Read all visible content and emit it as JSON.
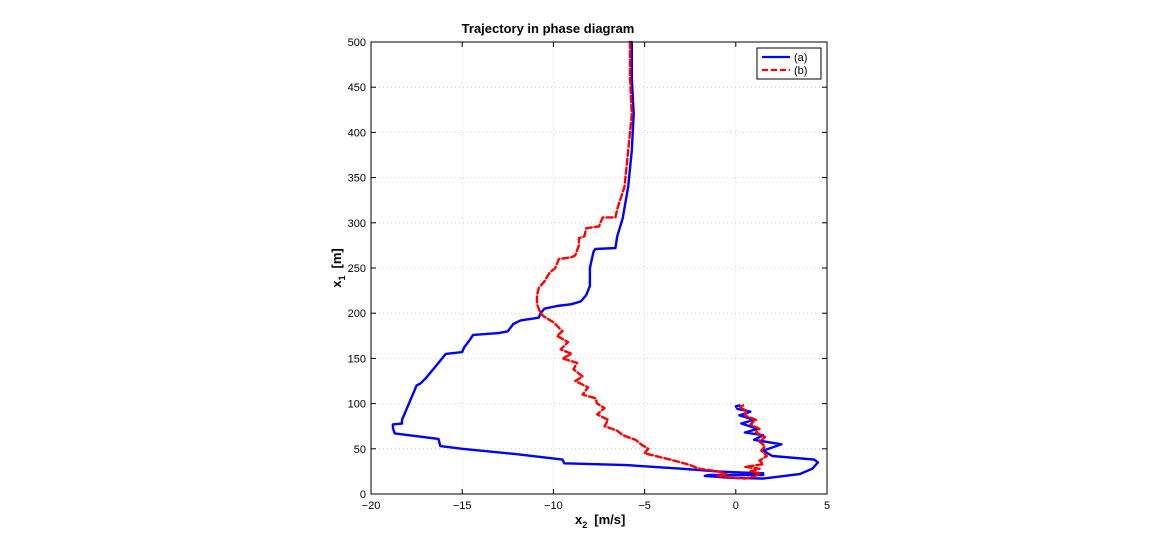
{
  "chart_data": {
    "type": "line",
    "title": "Trajectory in phase diagram",
    "xlabel": {
      "main": "x",
      "sub": "2",
      "unit": "[m/s]"
    },
    "ylabel": {
      "main": "x",
      "sub": "1",
      "unit": "[m]"
    },
    "xlim": [
      -20,
      5
    ],
    "ylim": [
      0,
      500
    ],
    "xticks": [
      -20,
      -15,
      -10,
      -5,
      0,
      5
    ],
    "yticks": [
      0,
      50,
      100,
      150,
      200,
      250,
      300,
      350,
      400,
      450,
      500
    ],
    "xtick_labels": [
      "−20",
      "−15",
      "−10",
      "−5",
      "0",
      "5"
    ],
    "ytick_labels": [
      "0",
      "50",
      "100",
      "150",
      "200",
      "250",
      "300",
      "350",
      "400",
      "450",
      "500"
    ],
    "grid": true,
    "legend_position": "top-right",
    "series": [
      {
        "name": "(a)",
        "color": "#0000ff",
        "style": "solid",
        "points": [
          [
            -5.7,
            500
          ],
          [
            -5.7,
            460
          ],
          [
            -5.6,
            420
          ],
          [
            -5.7,
            380
          ],
          [
            -5.9,
            340
          ],
          [
            -6.2,
            305
          ],
          [
            -6.5,
            285
          ],
          [
            -6.6,
            272
          ],
          [
            -7.7,
            271
          ],
          [
            -7.8,
            268
          ],
          [
            -8.0,
            250
          ],
          [
            -8.0,
            230
          ],
          [
            -8.2,
            220
          ],
          [
            -8.5,
            213
          ],
          [
            -9.0,
            210
          ],
          [
            -9.8,
            208
          ],
          [
            -10.5,
            205
          ],
          [
            -10.7,
            200
          ],
          [
            -10.8,
            195
          ],
          [
            -11.8,
            192
          ],
          [
            -12.2,
            188
          ],
          [
            -12.5,
            180
          ],
          [
            -13.0,
            178
          ],
          [
            -14.4,
            176
          ],
          [
            -14.6,
            170
          ],
          [
            -14.9,
            162
          ],
          [
            -15.0,
            157
          ],
          [
            -15.9,
            155
          ],
          [
            -16.1,
            150
          ],
          [
            -16.5,
            140
          ],
          [
            -17.0,
            128
          ],
          [
            -17.3,
            122
          ],
          [
            -17.5,
            120
          ],
          [
            -18.3,
            82
          ],
          [
            -18.3,
            78
          ],
          [
            -18.8,
            77
          ],
          [
            -18.8,
            73
          ],
          [
            -18.7,
            67
          ],
          [
            -16.3,
            61
          ],
          [
            -16.2,
            53
          ],
          [
            -15.0,
            50
          ],
          [
            -12.0,
            44
          ],
          [
            -9.5,
            38
          ],
          [
            -9.4,
            34
          ],
          [
            -6.0,
            32
          ],
          [
            -3.0,
            28
          ],
          [
            -1.0,
            25
          ],
          [
            0.0,
            24
          ],
          [
            1.5,
            23
          ],
          [
            1.5,
            21
          ],
          [
            0.0,
            21
          ],
          [
            -1.5,
            21
          ],
          [
            -1.7,
            20
          ],
          [
            -1.0,
            19
          ],
          [
            -0.5,
            18
          ],
          [
            1.5,
            17
          ],
          [
            3.5,
            22
          ],
          [
            4.2,
            28
          ],
          [
            4.5,
            35
          ],
          [
            4.3,
            38
          ],
          [
            2.0,
            42
          ],
          [
            1.5,
            48
          ],
          [
            2.5,
            55
          ],
          [
            1.0,
            60
          ],
          [
            1.5,
            65
          ],
          [
            0.5,
            68
          ],
          [
            1.2,
            72
          ],
          [
            0.3,
            78
          ],
          [
            1.0,
            82
          ],
          [
            0.2,
            87
          ],
          [
            0.8,
            91
          ],
          [
            0.1,
            94
          ],
          [
            0.0,
            97
          ],
          [
            0.2,
            98
          ]
        ]
      },
      {
        "name": "(b)",
        "color": "#ff0000",
        "style": "dashed",
        "points": [
          [
            -5.8,
            500
          ],
          [
            -5.8,
            460
          ],
          [
            -5.7,
            420
          ],
          [
            -5.9,
            380
          ],
          [
            -6.1,
            340
          ],
          [
            -6.5,
            315
          ],
          [
            -6.6,
            306
          ],
          [
            -7.3,
            306
          ],
          [
            -7.5,
            296
          ],
          [
            -8.2,
            294
          ],
          [
            -8.3,
            285
          ],
          [
            -8.6,
            283
          ],
          [
            -8.6,
            275
          ],
          [
            -8.8,
            264
          ],
          [
            -9.0,
            262
          ],
          [
            -9.7,
            260
          ],
          [
            -9.9,
            250
          ],
          [
            -10.2,
            245
          ],
          [
            -10.5,
            235
          ],
          [
            -10.8,
            228
          ],
          [
            -10.9,
            220
          ],
          [
            -10.9,
            210
          ],
          [
            -10.7,
            200
          ],
          [
            -10.5,
            196
          ],
          [
            -10.0,
            190
          ],
          [
            -9.5,
            180
          ],
          [
            -9.8,
            175
          ],
          [
            -9.2,
            168
          ],
          [
            -9.6,
            160
          ],
          [
            -9.0,
            155
          ],
          [
            -9.5,
            150
          ],
          [
            -8.7,
            145
          ],
          [
            -8.9,
            138
          ],
          [
            -8.4,
            130
          ],
          [
            -8.8,
            125
          ],
          [
            -8.1,
            118
          ],
          [
            -8.4,
            110
          ],
          [
            -7.7,
            106
          ],
          [
            -7.6,
            100
          ],
          [
            -7.2,
            95
          ],
          [
            -7.6,
            88
          ],
          [
            -7.0,
            82
          ],
          [
            -7.2,
            75
          ],
          [
            -6.5,
            70
          ],
          [
            -6.2,
            65
          ],
          [
            -5.5,
            60
          ],
          [
            -5.2,
            55
          ],
          [
            -4.8,
            50
          ],
          [
            -5.0,
            45
          ],
          [
            -4.0,
            40
          ],
          [
            -3.0,
            35
          ],
          [
            -2.5,
            32
          ],
          [
            -2.0,
            28
          ],
          [
            -1.0,
            25
          ],
          [
            -0.5,
            22
          ],
          [
            -1.0,
            20
          ],
          [
            -0.3,
            18
          ],
          [
            0.5,
            17
          ],
          [
            1.0,
            19
          ],
          [
            1.3,
            23
          ],
          [
            0.8,
            25
          ],
          [
            1.3,
            28
          ],
          [
            0.5,
            30
          ],
          [
            1.5,
            33
          ],
          [
            1.3,
            37
          ],
          [
            1.7,
            42
          ],
          [
            1.4,
            48
          ],
          [
            1.6,
            53
          ],
          [
            1.3,
            58
          ],
          [
            1.6,
            63
          ],
          [
            1.1,
            68
          ],
          [
            1.3,
            72
          ],
          [
            0.8,
            77
          ],
          [
            1.1,
            82
          ],
          [
            0.5,
            87
          ],
          [
            0.6,
            92
          ],
          [
            0.2,
            96
          ],
          [
            0.4,
            98
          ]
        ]
      }
    ]
  }
}
